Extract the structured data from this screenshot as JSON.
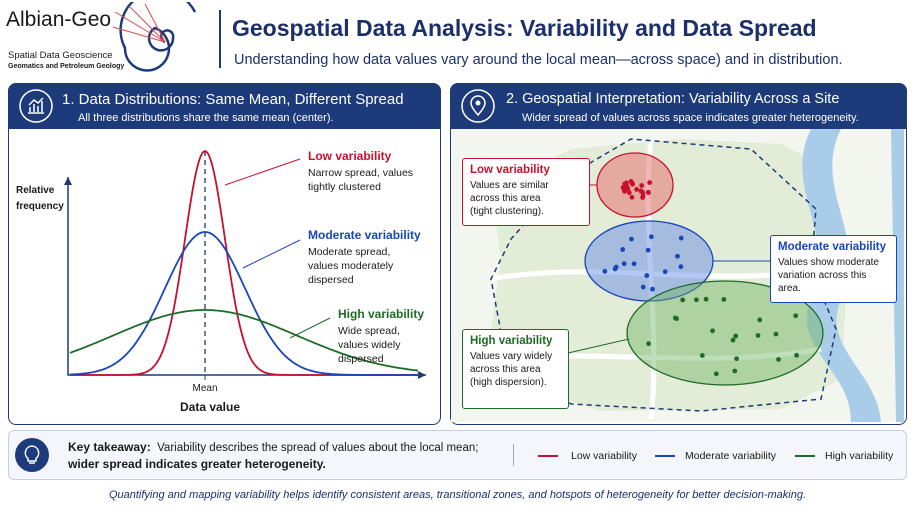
{
  "header": {
    "logo_name": "Albian-Geo",
    "logo_tagline1": "Spatial Data Geoscience",
    "logo_tagline2": "Geomatics and Petroleum Geology",
    "title": "Geospatial Data Analysis: Variability and Data Spread",
    "subtitle": "Understanding how data values vary around the local mean—across space) and in distribution."
  },
  "panel1": {
    "title": "1. Data Distributions: Same Mean, Different Spread",
    "subtitle": "All three distributions share the same mean (center).",
    "y_label": "Relative frequency",
    "x_label": "Data value",
    "mean_label": "Mean",
    "annotations": [
      {
        "title": "Low variability",
        "text": "Narrow spread, values tightly clustered"
      },
      {
        "title": "Moderate variability",
        "text": "Moderate spread, values moderately dispersed"
      },
      {
        "title": "High variability",
        "text": "Wide spread, values widely dispersed"
      }
    ]
  },
  "panel2": {
    "title": "2. Geospatial Interpretation: Variability Across a Site",
    "subtitle": "Wider spread of values across space indicates greater heterogeneity.",
    "callouts": [
      {
        "title": "Low variability",
        "text": "Values are similar across this area (tight clustering)."
      },
      {
        "title": "Moderate variability",
        "text": "Values show moderate variation across this area."
      },
      {
        "title": "High variability",
        "text": "Values vary widely across this area (high dispersion)."
      }
    ]
  },
  "takeaway": {
    "label": "Key takeaway:",
    "text": "Variability describes the spread of values about the local mean;",
    "emphasis": "wider spread indicates greater heterogeneity.",
    "legend": [
      "Low variability",
      "Moderate variability",
      "High variability"
    ]
  },
  "footer": "Quantifying and mapping variability helps identify consistent areas, transitional zones, and hotspots of heterogeneity for better decision-making."
}
